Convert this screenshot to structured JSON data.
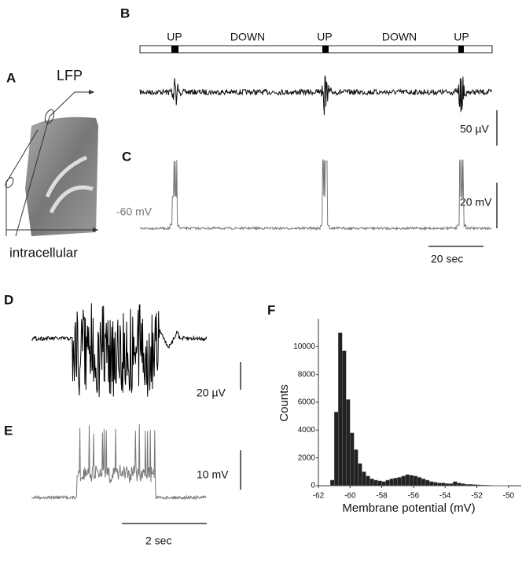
{
  "panel_labels": [
    "A",
    "B",
    "C",
    "D",
    "E",
    "F"
  ],
  "labels": {
    "lfp": "LFP",
    "intracellular": "intracellular",
    "states": [
      "UP",
      "DOWN",
      "UP",
      "DOWN",
      "UP"
    ],
    "scale_b": "50 µV",
    "scale_c": "20 mV",
    "baseline_c": "-60 mV",
    "time_c": "20 sec",
    "scale_d": "20 µV",
    "scale_e": "10 mV",
    "time_e": "2 sec"
  },
  "chart_data": {
    "type": "histogram",
    "xlabel": "Membrane potential (mV)",
    "ylabel": "Counts",
    "color": "#222222",
    "bins": [
      -61.25,
      -61,
      -60.75,
      -60.5,
      -60.25,
      -60,
      -59.75,
      -59.5,
      -59.25,
      -59,
      -58.75,
      -58.5,
      -58.25,
      -58,
      -57.75,
      -57.5,
      -57.25,
      -57,
      -56.75,
      -56.5,
      -56.25,
      -56,
      -55.75,
      -55.5,
      -55.25,
      -55,
      -54.75,
      -54.5,
      -54.25,
      -54,
      -53.75,
      -53.5,
      -53.25,
      -53,
      -52.75,
      -52.5,
      -52.25,
      -52,
      -51.75,
      -51.5,
      -51.25,
      -51,
      -50.75,
      -50.5,
      -50.25,
      -50
    ],
    "counts": [
      400,
      5300,
      11000,
      9700,
      6200,
      3800,
      2600,
      1600,
      1000,
      700,
      500,
      400,
      350,
      300,
      400,
      500,
      550,
      600,
      700,
      800,
      750,
      700,
      600,
      500,
      400,
      300,
      250,
      200,
      200,
      150,
      150,
      300,
      200,
      150,
      100,
      100,
      80,
      60,
      50,
      40,
      30,
      20,
      20,
      10,
      10
    ],
    "xlim": [
      -62,
      -49.2
    ],
    "ylim": [
      0,
      12000
    ],
    "xticks": [
      -62,
      -60,
      -58,
      -56,
      -54,
      -52,
      -50
    ],
    "yticks": [
      0,
      2000,
      4000,
      6000,
      8000,
      10000
    ]
  }
}
